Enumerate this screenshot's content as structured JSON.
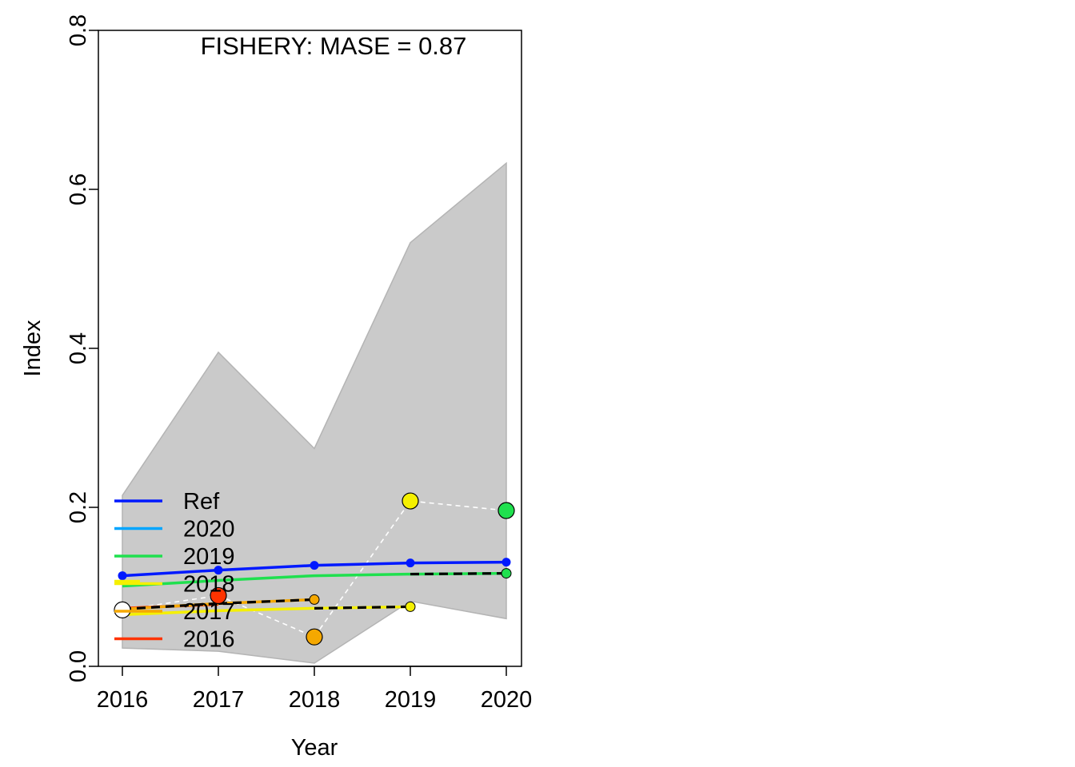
{
  "chart_data": {
    "type": "line",
    "title": "FISHERY: MASE = 0.87",
    "xlabel": "Year",
    "ylabel": "Index",
    "xlim": [
      2016,
      2020
    ],
    "ylim": [
      0,
      0.8
    ],
    "x_ticks": [
      2016,
      2017,
      2018,
      2019,
      2020
    ],
    "y_ticks": [
      "0.0",
      "0.2",
      "0.4",
      "0.6",
      "0.8"
    ],
    "grid": false,
    "legend_position": "bottom-left",
    "confidence_band": {
      "color": "#cacaca",
      "x": [
        2016,
        2017,
        2018,
        2019,
        2020
      ],
      "upper": [
        0.215,
        0.395,
        0.274,
        0.533,
        0.633
      ],
      "lower": [
        0.023,
        0.019,
        0.004,
        0.082,
        0.06
      ]
    },
    "observed": {
      "x": [
        2016,
        2017,
        2018,
        2019,
        2020
      ],
      "y": [
        0.071,
        0.089,
        0.037,
        0.208,
        0.196
      ],
      "colors": [
        "#ffffff",
        "#ff3300",
        "#f5a800",
        "#f5f000",
        "#1fe04e"
      ],
      "line_color": "#ffffff"
    },
    "series": [
      {
        "name": "Ref",
        "color": "#0019ff",
        "x": [
          2016,
          2017,
          2018,
          2019,
          2020
        ],
        "y": [
          0.114,
          0.121,
          0.127,
          0.13,
          0.131
        ]
      },
      {
        "name": "2020",
        "color": "#00a5ff",
        "x": [],
        "y": []
      },
      {
        "name": "2019",
        "color": "#1fe04e",
        "x": [
          2016,
          2017,
          2018,
          2019,
          2020
        ],
        "y": [
          0.101,
          0.108,
          0.114,
          0.116,
          0.117
        ]
      },
      {
        "name": "2018",
        "color": "#f5f000",
        "x": [
          2016,
          2017,
          2018,
          2019
        ],
        "y": [
          0.065,
          0.07,
          0.073,
          0.075
        ]
      },
      {
        "name": "2017",
        "color": "#f5a800",
        "x": [
          2016,
          2017,
          2018
        ],
        "y": [
          0.072,
          0.079,
          0.084
        ]
      },
      {
        "name": "2016",
        "color": "#ff3300",
        "x": [
          2016,
          2017
        ],
        "y": [
          0.073,
          0.078
        ]
      }
    ],
    "legend_extra_stub": {
      "color": "#f5f000",
      "y": 0.107
    },
    "forecast_segments": [
      {
        "x": [
          2016,
          2017
        ],
        "y": [
          0.072,
          0.079
        ],
        "color": "#000000"
      },
      {
        "x": [
          2017,
          2018
        ],
        "y": [
          0.079,
          0.084
        ],
        "color": "#000000"
      },
      {
        "x": [
          2018,
          2019
        ],
        "y": [
          0.073,
          0.075
        ],
        "color": "#000000"
      },
      {
        "x": [
          2019,
          2020
        ],
        "y": [
          0.116,
          0.117
        ],
        "color": "#000000"
      }
    ],
    "forecast_points": [
      {
        "x": 2018,
        "y": 0.084,
        "color": "#f5a800"
      },
      {
        "x": 2019,
        "y": 0.075,
        "color": "#f5f000"
      },
      {
        "x": 2020,
        "y": 0.117,
        "color": "#1fe04e"
      }
    ]
  }
}
